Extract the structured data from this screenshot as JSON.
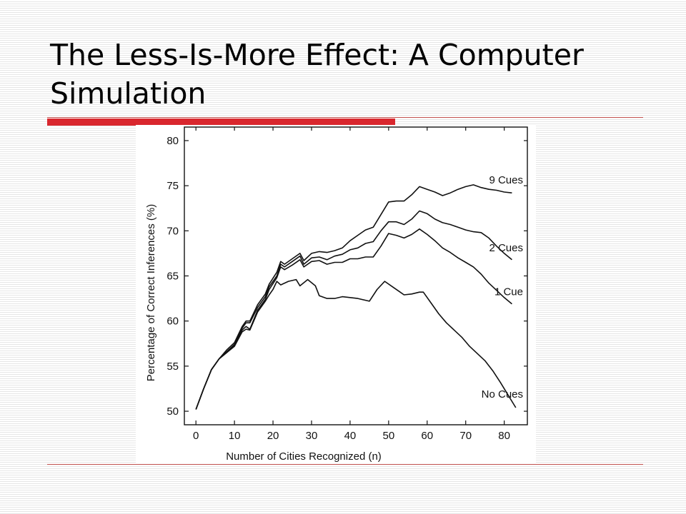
{
  "slide": {
    "title": "The Less-Is-More Effect: A Computer Simulation",
    "accent_color": "#d9272e"
  },
  "chart_data": {
    "type": "line",
    "title": "",
    "xlabel": "Number of Cities Recognized (n)",
    "ylabel": "Percentage of Correct Inferences (%)",
    "xlim": [
      -3,
      86
    ],
    "ylim": [
      48.5,
      81.5
    ],
    "xticks": [
      0,
      10,
      20,
      30,
      40,
      50,
      60,
      70,
      80
    ],
    "yticks": [
      50,
      55,
      60,
      65,
      70,
      75,
      80
    ],
    "grid": false,
    "series": [
      {
        "name": "9 Cues",
        "points": [
          [
            0,
            50.2
          ],
          [
            2,
            52.5
          ],
          [
            4,
            54.6
          ],
          [
            6,
            55.8
          ],
          [
            8,
            56.8
          ],
          [
            10,
            57.6
          ],
          [
            12,
            59.4
          ],
          [
            13,
            60.0
          ],
          [
            14,
            60.0
          ],
          [
            16,
            61.8
          ],
          [
            18,
            63.0
          ],
          [
            19,
            64.1
          ],
          [
            21,
            65.4
          ],
          [
            22,
            66.6
          ],
          [
            23,
            66.3
          ],
          [
            25,
            66.9
          ],
          [
            27,
            67.5
          ],
          [
            28,
            66.7
          ],
          [
            30,
            67.5
          ],
          [
            32,
            67.7
          ],
          [
            34,
            67.6
          ],
          [
            36,
            67.8
          ],
          [
            38,
            68.1
          ],
          [
            40,
            68.9
          ],
          [
            42,
            69.5
          ],
          [
            44,
            70.1
          ],
          [
            46,
            70.4
          ],
          [
            48,
            71.8
          ],
          [
            50,
            73.2
          ],
          [
            52,
            73.3
          ],
          [
            54,
            73.3
          ],
          [
            56,
            74.0
          ],
          [
            58,
            74.9
          ],
          [
            60,
            74.6
          ],
          [
            62,
            74.3
          ],
          [
            64,
            73.9
          ],
          [
            66,
            74.2
          ],
          [
            68,
            74.6
          ],
          [
            70,
            74.9
          ],
          [
            72,
            75.1
          ],
          [
            74,
            74.8
          ],
          [
            76,
            74.6
          ],
          [
            78,
            74.5
          ],
          [
            80,
            74.3
          ],
          [
            82,
            74.2
          ]
        ]
      },
      {
        "name": "2 Cues",
        "points": [
          [
            0,
            50.2
          ],
          [
            2,
            52.5
          ],
          [
            4,
            54.6
          ],
          [
            6,
            55.8
          ],
          [
            8,
            56.6
          ],
          [
            10,
            57.4
          ],
          [
            12,
            59.2
          ],
          [
            13,
            59.8
          ],
          [
            14,
            59.8
          ],
          [
            16,
            61.5
          ],
          [
            18,
            62.7
          ],
          [
            19,
            63.8
          ],
          [
            21,
            65.0
          ],
          [
            22,
            66.3
          ],
          [
            23,
            66.0
          ],
          [
            25,
            66.6
          ],
          [
            27,
            67.2
          ],
          [
            28,
            66.3
          ],
          [
            30,
            67.0
          ],
          [
            32,
            67.1
          ],
          [
            34,
            66.8
          ],
          [
            36,
            67.2
          ],
          [
            38,
            67.4
          ],
          [
            40,
            67.9
          ],
          [
            42,
            68.1
          ],
          [
            44,
            68.6
          ],
          [
            46,
            68.8
          ],
          [
            48,
            70.0
          ],
          [
            50,
            71.0
          ],
          [
            52,
            71.0
          ],
          [
            54,
            70.7
          ],
          [
            56,
            71.3
          ],
          [
            58,
            72.2
          ],
          [
            60,
            71.9
          ],
          [
            62,
            71.3
          ],
          [
            64,
            70.9
          ],
          [
            66,
            70.7
          ],
          [
            68,
            70.4
          ],
          [
            70,
            70.1
          ],
          [
            72,
            69.9
          ],
          [
            74,
            69.8
          ],
          [
            76,
            69.2
          ],
          [
            78,
            68.3
          ],
          [
            80,
            67.5
          ],
          [
            82,
            66.8
          ]
        ]
      },
      {
        "name": "1 Cue",
        "points": [
          [
            0,
            50.2
          ],
          [
            2,
            52.5
          ],
          [
            4,
            54.6
          ],
          [
            6,
            55.8
          ],
          [
            8,
            56.5
          ],
          [
            10,
            57.3
          ],
          [
            12,
            59.0
          ],
          [
            13,
            59.4
          ],
          [
            14,
            59.1
          ],
          [
            16,
            61.2
          ],
          [
            18,
            62.4
          ],
          [
            19,
            63.5
          ],
          [
            21,
            64.8
          ],
          [
            22,
            66.0
          ],
          [
            23,
            65.7
          ],
          [
            25,
            66.2
          ],
          [
            27,
            66.8
          ],
          [
            28,
            66.0
          ],
          [
            30,
            66.6
          ],
          [
            32,
            66.7
          ],
          [
            34,
            66.3
          ],
          [
            36,
            66.5
          ],
          [
            38,
            66.5
          ],
          [
            40,
            66.9
          ],
          [
            42,
            66.9
          ],
          [
            44,
            67.1
          ],
          [
            46,
            67.1
          ],
          [
            48,
            68.3
          ],
          [
            50,
            69.7
          ],
          [
            52,
            69.5
          ],
          [
            54,
            69.2
          ],
          [
            56,
            69.6
          ],
          [
            58,
            70.2
          ],
          [
            60,
            69.6
          ],
          [
            62,
            68.9
          ],
          [
            64,
            68.1
          ],
          [
            66,
            67.6
          ],
          [
            68,
            67.0
          ],
          [
            70,
            66.5
          ],
          [
            72,
            66.0
          ],
          [
            74,
            65.2
          ],
          [
            76,
            64.2
          ],
          [
            78,
            63.4
          ],
          [
            80,
            62.6
          ],
          [
            82,
            61.9
          ]
        ]
      },
      {
        "name": "No Cues",
        "points": [
          [
            0,
            50.2
          ],
          [
            2,
            52.5
          ],
          [
            4,
            54.6
          ],
          [
            6,
            55.8
          ],
          [
            8,
            56.5
          ],
          [
            10,
            57.2
          ],
          [
            12,
            58.8
          ],
          [
            13,
            59.1
          ],
          [
            14,
            59.0
          ],
          [
            16,
            61.0
          ],
          [
            18,
            62.2
          ],
          [
            19,
            62.9
          ],
          [
            20,
            63.5
          ],
          [
            21,
            64.4
          ],
          [
            22,
            64.0
          ],
          [
            24,
            64.4
          ],
          [
            26,
            64.6
          ],
          [
            27,
            63.9
          ],
          [
            29,
            64.6
          ],
          [
            31,
            63.9
          ],
          [
            32,
            62.8
          ],
          [
            34,
            62.5
          ],
          [
            36,
            62.5
          ],
          [
            38,
            62.7
          ],
          [
            40,
            62.6
          ],
          [
            42,
            62.5
          ],
          [
            44,
            62.3
          ],
          [
            45,
            62.2
          ],
          [
            47,
            63.5
          ],
          [
            49,
            64.4
          ],
          [
            51,
            63.8
          ],
          [
            53,
            63.2
          ],
          [
            54,
            62.9
          ],
          [
            56,
            63.0
          ],
          [
            58,
            63.2
          ],
          [
            59,
            63.2
          ],
          [
            61,
            62.0
          ],
          [
            63,
            60.8
          ],
          [
            65,
            59.8
          ],
          [
            67,
            59.0
          ],
          [
            69,
            58.2
          ],
          [
            71,
            57.2
          ],
          [
            73,
            56.4
          ],
          [
            75,
            55.6
          ],
          [
            77,
            54.5
          ],
          [
            79,
            53.2
          ],
          [
            81,
            51.8
          ],
          [
            83,
            50.4
          ]
        ]
      }
    ]
  }
}
